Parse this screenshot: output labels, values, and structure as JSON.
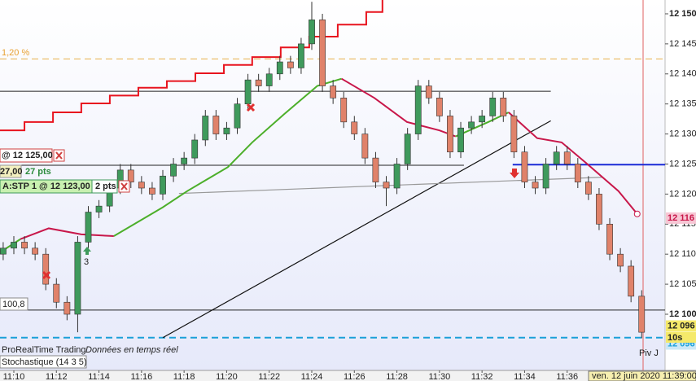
{
  "chart_data": {
    "type": "candlestick",
    "x": [
      669.5,
      670,
      670.5,
      671,
      671.5,
      672,
      672.5,
      673,
      673.5,
      674,
      674.5,
      675,
      675.5,
      676,
      676.5,
      677,
      677.5,
      678,
      678.5,
      679,
      679.5,
      680,
      680.5,
      681,
      681.5,
      682,
      682.5,
      683,
      683.5,
      684,
      684.5,
      685,
      685.5,
      686,
      686.5,
      687,
      687.5,
      688,
      688.5,
      689,
      689.5,
      690,
      690.5,
      691,
      691.5,
      692,
      692.5,
      693,
      693.5,
      694,
      694.5,
      695,
      695.5,
      696,
      696.5,
      697,
      697.5,
      698,
      698.5,
      699,
      699.5
    ],
    "open": [
      12110,
      12111,
      12112,
      12111,
      12110,
      12105,
      12102,
      12100,
      12112,
      12117,
      12118,
      12121,
      12124,
      12122,
      12121,
      12120,
      12123,
      12125,
      12126,
      12129,
      12133,
      12130,
      12131,
      12135,
      12139,
      12138,
      12140,
      12142,
      12141,
      12145,
      12149,
      12138,
      12136,
      12132,
      12130,
      12126,
      12122,
      12121,
      12125,
      12130,
      12138,
      12136,
      12133,
      12127,
      12131,
      12132,
      12133,
      12136,
      12133,
      12127,
      12122,
      12121,
      12125,
      12127,
      12125,
      12122,
      12120,
      12115,
      12110,
      12108,
      12103
    ],
    "high": [
      12112,
      12113,
      12113,
      12112,
      12111,
      12106,
      12103,
      12113,
      12118,
      12119,
      12122,
      12125,
      12125,
      12123,
      12122,
      12124,
      12126,
      12127,
      12130,
      12134,
      12134,
      12132,
      12136,
      12140,
      12140,
      12141,
      12143,
      12143,
      12146,
      12152,
      12150,
      12139,
      12137,
      12133,
      12131,
      12127,
      12123,
      12126,
      12131,
      12139,
      12139,
      12137,
      12134,
      12132,
      12133,
      12134,
      12137,
      12137,
      12134,
      12128,
      12123,
      12126,
      12128,
      12128,
      12126,
      12123,
      12121,
      12116,
      12111,
      12109,
      12104
    ],
    "low": [
      12109,
      12110,
      12110,
      12109,
      12104,
      12101,
      12099,
      12097,
      12111,
      12116,
      12117,
      12120,
      12121,
      12120,
      12119,
      12119,
      12122,
      12124,
      12125,
      12128,
      12129,
      12129,
      12130,
      12134,
      12137,
      12137,
      12139,
      12140,
      12140,
      12144,
      12137,
      12135,
      12131,
      12129,
      12125,
      12121,
      12118,
      12120,
      12124,
      12129,
      12135,
      12132,
      12126,
      12126,
      12130,
      12131,
      12132,
      12132,
      12126,
      12121,
      12120,
      12120,
      12124,
      12124,
      12121,
      12119,
      12114,
      12109,
      12107,
      12102,
      12096
    ],
    "close": [
      12111,
      12112,
      12111,
      12110,
      12105,
      12102,
      12100,
      12112,
      12117,
      12118,
      12121,
      12124,
      12122,
      12121,
      12120,
      12123,
      12125,
      12126,
      12129,
      12133,
      12130,
      12131,
      12135,
      12139,
      12138,
      12140,
      12142,
      12141,
      12145,
      12149,
      12138,
      12136,
      12132,
      12130,
      12126,
      12122,
      12121,
      12125,
      12130,
      12138,
      12136,
      12133,
      12127,
      12131,
      12132,
      12133,
      12136,
      12133,
      12127,
      12122,
      12121,
      12125,
      12127,
      12125,
      12122,
      12120,
      12115,
      12110,
      12108,
      12103,
      12097
    ],
    "up_color": "#3f9a5c",
    "down_color": "#e0826a",
    "xlim": [
      669.35,
      700.6
    ],
    "xticks": [
      {
        "value": 670,
        "label": "11:10"
      },
      {
        "value": 672,
        "label": "11:12"
      },
      {
        "value": 674,
        "label": "11:14"
      },
      {
        "value": 676,
        "label": "11:16"
      },
      {
        "value": 678,
        "label": "11:18"
      },
      {
        "value": 680,
        "label": "11:20"
      },
      {
        "value": 682,
        "label": "11:22"
      },
      {
        "value": 684,
        "label": "11:24"
      },
      {
        "value": 686,
        "label": "11:26"
      },
      {
        "value": 688,
        "label": "11:28"
      },
      {
        "value": 690,
        "label": "11:30"
      },
      {
        "value": 692,
        "label": "11:32"
      },
      {
        "value": 694,
        "label": "11:34"
      },
      {
        "value": 696,
        "label": "11:36"
      }
    ],
    "ylim": [
      12090.65,
      12152.3
    ],
    "yticks": [
      {
        "value": 12100,
        "label": "12 100"
      },
      {
        "value": 12105,
        "label": "12 105"
      },
      {
        "value": 12110,
        "label": "12 110"
      },
      {
        "value": 12115,
        "label": "12 115"
      },
      {
        "value": 12120,
        "label": "12 120"
      },
      {
        "value": 12125,
        "label": "12 125"
      },
      {
        "value": 12130,
        "label": "12 130"
      },
      {
        "value": 12135,
        "label": "12 135"
      },
      {
        "value": 12140,
        "label": "12 140"
      },
      {
        "value": 12145,
        "label": "12 145"
      },
      {
        "value": 12150,
        "label": "12 150"
      }
    ],
    "lines": [
      {
        "color": "#4caf2a",
        "step": false,
        "x": [
          669.35,
          670.31
        ],
        "values": [
          12110.3,
          12112.5
        ]
      },
      {
        "color": "#c8174a",
        "step": false,
        "x": [
          670.31,
          671.64,
          673.17,
          674.7
        ],
        "values": [
          12112.5,
          12114.3,
          12113.3,
          12113
        ]
      },
      {
        "color": "#4caf2a",
        "step": false,
        "x": [
          674.7,
          677,
          678.15,
          680.06,
          681.2,
          682.7,
          684.26,
          685.4
        ],
        "values": [
          12113,
          12117.8,
          12120.5,
          12124.5,
          12128.6,
          12133.3,
          12138,
          12139.2
        ]
      },
      {
        "color": "#c8174a",
        "step": false,
        "x": [
          685.4,
          686.94,
          688.47,
          690,
          690.76
        ],
        "values": [
          12139.2,
          12136,
          12132,
          12130.6,
          12129.6
        ]
      },
      {
        "color": "#4caf2a",
        "step": false,
        "x": [
          690.76,
          692.3,
          693.25
        ],
        "values": [
          12129.6,
          12132,
          12133.6
        ]
      },
      {
        "color": "#c8174a",
        "step": false,
        "x": [
          693.25,
          694.59,
          695.74,
          696.88,
          698.41,
          699.29
        ],
        "values": [
          12133.6,
          12129.3,
          12128.6,
          12125.2,
          12120.5,
          12116.7
        ]
      },
      {
        "color": "#e8141e",
        "step": true,
        "x": [
          669.35,
          670.5,
          671.84,
          673.17,
          674.51,
          675.85,
          677.19,
          678.53,
          679.87,
          681.2,
          682.54,
          683.88,
          685.22,
          686.56,
          687.32
        ],
        "values": [
          12130.6,
          12132,
          12133.6,
          12135.1,
          12136.4,
          12137.7,
          12138.8,
          12140.1,
          12141.5,
          12142.8,
          12144.4,
          12146.2,
          12148.2,
          12150.3,
          12152.3
        ]
      }
    ],
    "hlines": [
      {
        "value": 12137.1,
        "x": [
          669.35,
          695.23
        ],
        "color": "#222222",
        "dash": false,
        "width": 1
      },
      {
        "value": 12124.8,
        "x": [
          669.35,
          691.15
        ],
        "color": "#222222",
        "dash": false,
        "width": 1
      },
      {
        "value": 12124.9,
        "x": [
          693.44,
          700.6
        ],
        "color": "#1a2bd6",
        "dash": false,
        "width": 2
      },
      {
        "value": 12100.7,
        "x": [
          669.35,
          700.6
        ],
        "color": "#222222",
        "dash": false,
        "width": 1
      },
      {
        "value": 12096.1,
        "x": [
          669.35,
          700.6
        ],
        "color": "#1aa0d8",
        "dash": true,
        "width": 2
      },
      {
        "value": 12142.5,
        "x": [
          669.35,
          700.6
        ],
        "color": "#e8b04a",
        "dash": true,
        "width": 1
      }
    ],
    "trendlines": [
      {
        "x": [
          677,
          695.23
        ],
        "values": [
          12096.1,
          12132.2
        ],
        "color": "#111111"
      },
      {
        "x": [
          677.76,
          697.65
        ],
        "values": [
          12120.1,
          12122.8
        ],
        "color": "#999999"
      }
    ],
    "price_tags": [
      {
        "value": 12116,
        "label": "12 116",
        "bg": "#f7c6d4",
        "color": "#c8174a"
      },
      {
        "value": 12096,
        "label": "12 096",
        "bg": "#f5e96a",
        "color": "#222222"
      },
      {
        "value": 12096,
        "label": "12 096",
        "bg": "#cce8f7",
        "color": "#1aa0d8"
      }
    ],
    "timer": "10s",
    "annotations": [
      "1,20 %",
      "@ 12 125,00",
      "27,00",
      "27 pts",
      "A:STP  1 @ 12 123,00",
      "2 pts",
      "100,8",
      "ProRealTime Trading",
      "Données en temps réel",
      "Stochastique (14 3 5)",
      "Piv J",
      "3"
    ],
    "date_label": "ven. 12 juin 2020 11:39:00"
  }
}
